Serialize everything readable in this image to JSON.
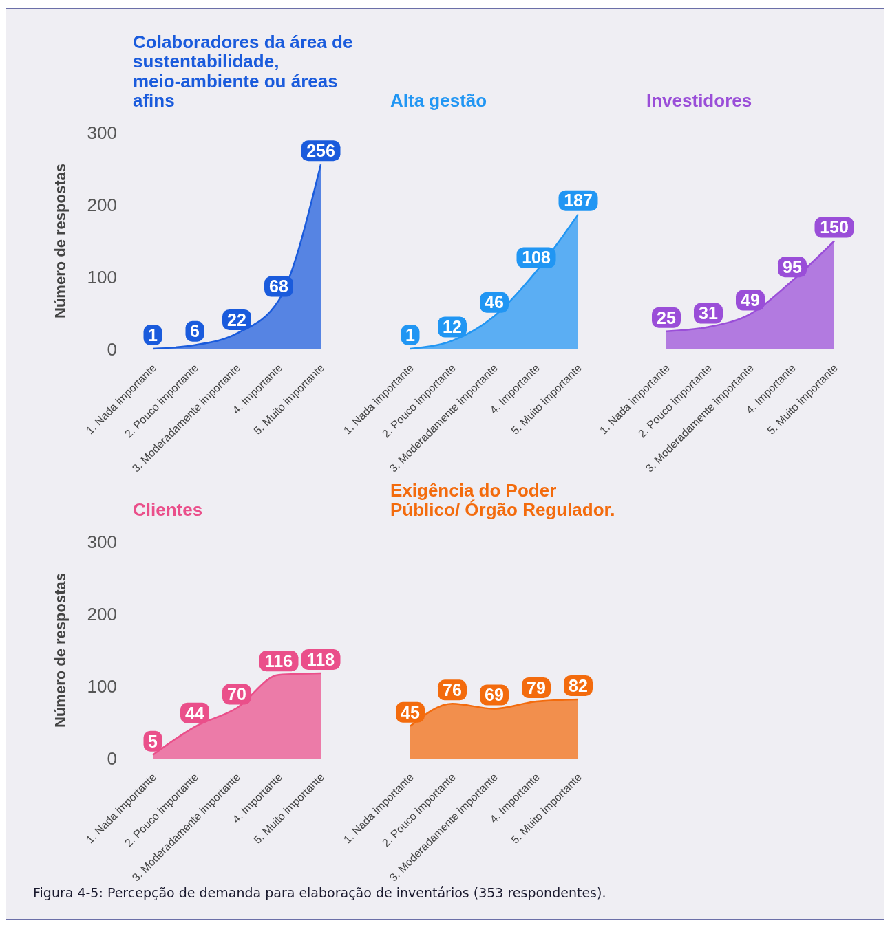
{
  "chart_data": [
    {
      "type": "area",
      "title": "Colaboradores da área de sustentabilidade, meio-ambiente ou áreas afins",
      "ylabel": "Número de respostas",
      "categories": [
        "1. Nada importante",
        "2. Pouco importante",
        "3. Moderadamente importante",
        "4. Importante",
        "5. Muito importante"
      ],
      "values": [
        1,
        6,
        22,
        68,
        256
      ],
      "color": "#1a5bdc",
      "ylim": [
        0,
        300
      ],
      "yticks": [
        0,
        100,
        200,
        300
      ],
      "data_labels": true
    },
    {
      "type": "area",
      "title": "Alta gestão",
      "categories": [
        "1. Nada importante",
        "2. Pouco importante",
        "3. Moderadamente importante",
        "4. Importante",
        "5. Muito importante"
      ],
      "values": [
        1,
        12,
        46,
        108,
        187
      ],
      "color": "#2196f3",
      "ylim": [
        0,
        300
      ],
      "tick_labels": "x",
      "data_labels": true
    },
    {
      "type": "area",
      "title": "Investidores",
      "categories": [
        "1. Nada importante",
        "2. Pouco importante",
        "3. Moderadamente importante",
        "4. Importante",
        "5. Muito importante"
      ],
      "values": [
        25,
        31,
        49,
        95,
        150
      ],
      "color": "#9a4ed8",
      "ylim": [
        0,
        300
      ],
      "tick_labels": "x",
      "data_labels": true
    },
    {
      "type": "area",
      "title": "Clientes",
      "ylabel": "Número de respostas",
      "categories": [
        "1. Nada importante",
        "2. Pouco importante",
        "3. Moderadamente importante",
        "4. Importante",
        "5. Muito importante"
      ],
      "values": [
        5,
        44,
        70,
        116,
        118
      ],
      "color": "#ea4f8a",
      "ylim": [
        0,
        300
      ],
      "yticks": [
        0,
        100,
        200,
        300
      ],
      "data_labels": true
    },
    {
      "type": "area",
      "title": "Exigência do Poder Público/ Órgão Regulador.",
      "categories": [
        "1. Nada importante",
        "2. Pouco importante",
        "3. Moderadamente importante",
        "4. Importante",
        "5. Muito importante"
      ],
      "values": [
        45,
        76,
        69,
        79,
        82
      ],
      "color": "#f36b0d",
      "ylim": [
        0,
        300
      ],
      "tick_labels": "x",
      "data_labels": true,
      "annotations": [
        "Figura 4-5: Percepção de demanda para elaboração de inventários (353 respondentes)."
      ]
    }
  ]
}
